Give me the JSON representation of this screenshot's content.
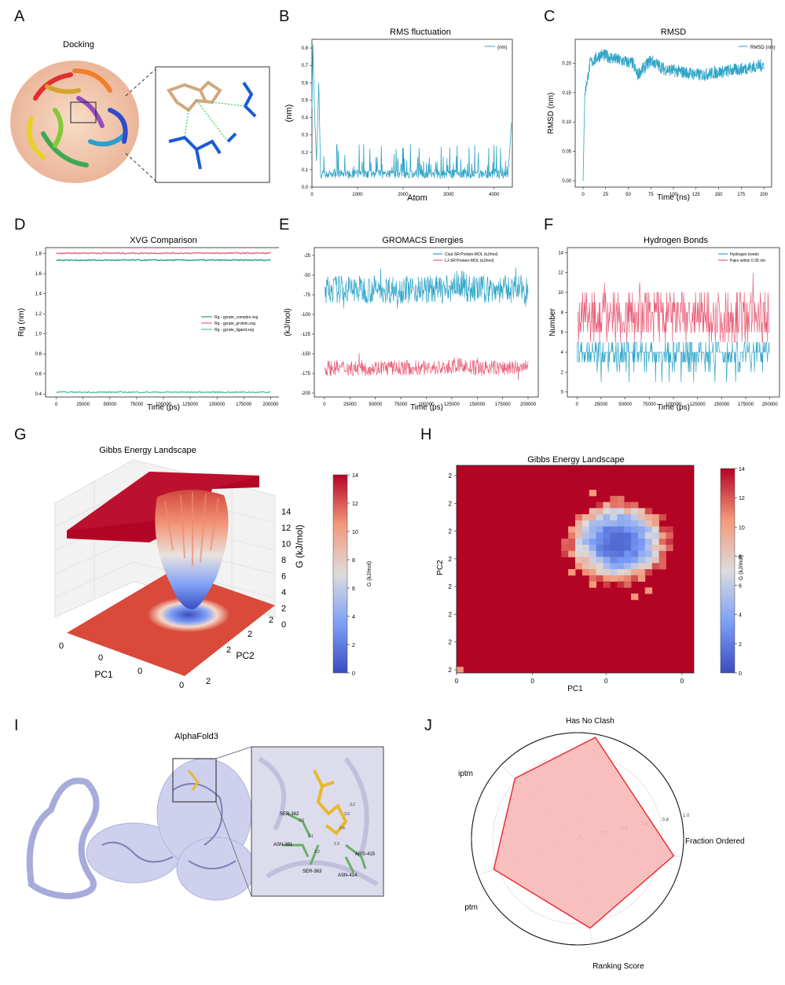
{
  "letters": [
    "A",
    "B",
    "C",
    "D",
    "E",
    "F",
    "G",
    "H",
    "I",
    "J"
  ],
  "panelA": {
    "title": "Docking"
  },
  "panelB": {
    "chart_data": {
      "type": "line",
      "title": "RMS fluctuation",
      "xlabel": "Atom",
      "ylabel": "(nm)",
      "legend": [
        "(nm)"
      ],
      "xlim": [
        0,
        4400
      ],
      "ylim": [
        0,
        0.85
      ],
      "xticks": [
        "0",
        "1000",
        "2000",
        "3000",
        "4000"
      ],
      "yticks": [
        "0.0",
        "0.1",
        "0.2",
        "0.3",
        "0.4",
        "0.5",
        "0.6",
        "0.7",
        "0.8"
      ],
      "baseline": 0.08,
      "peak_start": 0.82,
      "typical_max": 0.25,
      "end_value": 0.37
    }
  },
  "panelC": {
    "chart_data": {
      "type": "line",
      "title": "RMSD",
      "xlabel": "Time (ns)",
      "ylabel": "RMSD (nm)",
      "legend": [
        "RMSD (nm)"
      ],
      "xlim": [
        0,
        200
      ],
      "ylim": [
        0,
        0.23
      ],
      "xticks": [
        "0",
        "25",
        "50",
        "75",
        "100",
        "125",
        "150",
        "175",
        "200"
      ],
      "yticks": [
        "0.00",
        "0.05",
        "0.10",
        "0.15",
        "0.20"
      ],
      "plateau": [
        [
          0,
          0.0
        ],
        [
          2,
          0.15
        ],
        [
          8,
          0.2
        ],
        [
          20,
          0.215
        ],
        [
          40,
          0.205
        ],
        [
          55,
          0.2
        ],
        [
          60,
          0.18
        ],
        [
          75,
          0.205
        ],
        [
          90,
          0.19
        ],
        [
          110,
          0.185
        ],
        [
          130,
          0.18
        ],
        [
          150,
          0.185
        ],
        [
          175,
          0.19
        ],
        [
          200,
          0.197
        ]
      ]
    }
  },
  "panelD": {
    "chart_data": {
      "type": "line",
      "title": "XVG Comparison",
      "xlabel": "Time (ps)",
      "ylabel": "Rg (nm)",
      "xlim": [
        -10000,
        210000
      ],
      "ylim": [
        0.37,
        1.86
      ],
      "xticks": [
        "0",
        "25000",
        "50000",
        "75000",
        "100000",
        "125000",
        "150000",
        "175000",
        "200000"
      ],
      "yticks": [
        "0.4",
        "0.6",
        "0.8",
        "1.0",
        "1.2",
        "1.4",
        "1.6",
        "1.8"
      ],
      "series": [
        {
          "name": "Rg - gyrate_complex.xvg",
          "value": 1.735,
          "color": "#2a9d8f"
        },
        {
          "name": "Rg - gyrate_protein.xvg",
          "value": 1.805,
          "color": "#e8607a"
        },
        {
          "name": "Rg - gyrate_ligand.xvg",
          "value": 0.418,
          "color": "#50c59b"
        }
      ]
    }
  },
  "panelE": {
    "chart_data": {
      "type": "line",
      "title": "GROMACS Energies",
      "xlabel": "Time (ps)",
      "ylabel": "(kJ/mol)",
      "xlim": [
        -10000,
        210000
      ],
      "ylim": [
        -205,
        -15
      ],
      "xticks": [
        "0",
        "25000",
        "50000",
        "75000",
        "100000",
        "125000",
        "150000",
        "175000",
        "200000"
      ],
      "yticks": [
        "-25",
        "-50",
        "-75",
        "-100",
        "-125",
        "-150",
        "-175",
        "-200"
      ],
      "series": [
        {
          "name": "Coul-SR:Protein-MOL (kJ/mol)",
          "mean": -68,
          "spread": 18,
          "color": "#2fa5c8"
        },
        {
          "name": "LJ-SR:Protein-MOL (kJ/mol)",
          "mean": -168,
          "spread": 10,
          "color": "#e8607a"
        }
      ]
    }
  },
  "panelF": {
    "chart_data": {
      "type": "line",
      "title": "Hydrogen Bonds",
      "xlabel": "Time (ps)",
      "ylabel": "Number",
      "xlim": [
        -10000,
        210000
      ],
      "ylim": [
        -0.5,
        14.5
      ],
      "xticks": [
        "0",
        "25000",
        "50000",
        "75000",
        "100000",
        "125000",
        "150000",
        "175000",
        "200000"
      ],
      "yticks": [
        "0",
        "2",
        "4",
        "6",
        "8",
        "10",
        "12",
        "14"
      ],
      "series": [
        {
          "name": "Hydrogen bonds",
          "mean": 3.5,
          "color": "#2fa5c8"
        },
        {
          "name": "Pairs within 0.35 nm",
          "mean": 7.5,
          "color": "#e8607a"
        }
      ]
    }
  },
  "panelG": {
    "chart_data": {
      "type": "surface",
      "title": "Gibbs Energy Landscape",
      "xlabel": "PC1",
      "ylabel": "PC2",
      "zlabel": "G (kJ/mol)",
      "zticks": [
        "0",
        "2",
        "4",
        "6",
        "8",
        "10",
        "12",
        "14"
      ],
      "xticks": [
        "0",
        "0",
        "0",
        "0"
      ],
      "yticks": [
        "2",
        "2",
        "2",
        "2"
      ],
      "colorbar": {
        "label": "G (kJ/mol)",
        "ticks": [
          "0",
          "2",
          "4",
          "6",
          "8",
          "10",
          "12",
          "14"
        ]
      }
    }
  },
  "panelH": {
    "chart_data": {
      "type": "heatmap",
      "title": "Gibbs Energy Landscape",
      "xlabel": "PC1",
      "ylabel": "PC2",
      "xticks": [
        "0",
        "0",
        "0",
        "0"
      ],
      "yticks": [
        "2",
        "2",
        "2",
        "2",
        "2",
        "2",
        "2",
        "2"
      ],
      "zrange": [
        0,
        14
      ],
      "min_center": [
        0.68,
        0.37
      ],
      "colorbar": {
        "label": "G (kJ/mol)",
        "ticks": [
          "0",
          "2",
          "4",
          "6",
          "8",
          "10",
          "12",
          "14"
        ]
      }
    }
  },
  "panelI": {
    "title": "AlphaFold3",
    "residues": [
      "SER-362",
      "ASN-381",
      "SER-363",
      "ARG-415",
      "ASN-414"
    ],
    "distances": [
      "3.0",
      "2.1",
      "3.2",
      "2.3",
      "2.6",
      "3.0",
      "3.2"
    ]
  },
  "panelJ": {
    "chart_data": {
      "type": "radar",
      "categories": [
        "Has No Clash",
        "Fraction Ordered",
        "Ranking Score",
        "ptm",
        "iptm"
      ],
      "values": [
        0.97,
        0.92,
        0.85,
        0.84,
        0.82
      ],
      "rticks": [
        "0",
        "0.2",
        "0.4",
        "0.6",
        "0.8",
        "1.0"
      ],
      "color": "#e8262e",
      "fill": "#f8b4b4"
    }
  }
}
